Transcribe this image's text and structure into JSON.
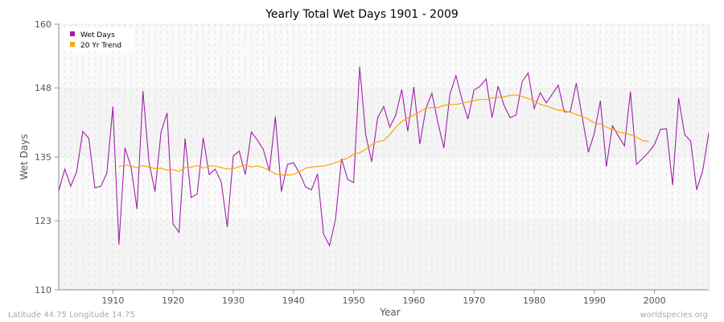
{
  "chart_data": {
    "type": "line",
    "title": "Yearly Total Wet Days 1901 - 2009",
    "xlabel": "Year",
    "ylabel": "Wet Days",
    "xlim": [
      1901,
      2009
    ],
    "ylim": [
      110,
      160
    ],
    "yticks": [
      110,
      123,
      135,
      148,
      160
    ],
    "xticks": [
      1910,
      1920,
      1930,
      1940,
      1950,
      1960,
      1970,
      1980,
      1990,
      2000
    ],
    "grid": true,
    "legend_position": "top-left",
    "series": [
      {
        "name": "Wet Days",
        "color": "#a020a8",
        "x_start": 1901,
        "values": [
          128.6,
          132.7,
          129.5,
          132.3,
          139.8,
          138.5,
          129.2,
          129.5,
          132.0,
          144.5,
          118.5,
          136.7,
          133.2,
          125.2,
          147.4,
          134.0,
          128.5,
          139.7,
          143.3,
          122.4,
          120.8,
          138.5,
          127.4,
          128.0,
          138.6,
          131.7,
          132.7,
          130.3,
          121.8,
          135.2,
          136.1,
          131.7,
          139.7,
          138.2,
          136.4,
          132.3,
          142.6,
          128.5,
          133.6,
          133.9,
          132.0,
          129.4,
          128.8,
          131.8,
          120.5,
          118.3,
          123.3,
          134.7,
          130.8,
          130.2,
          152.0,
          139.2,
          134.1,
          142.4,
          144.5,
          140.6,
          142.9,
          147.7,
          139.8,
          148.2,
          137.4,
          144.1,
          147.0,
          141.5,
          136.7,
          146.8,
          150.3,
          145.8,
          142.1,
          147.6,
          148.3,
          149.7,
          142.4,
          148.3,
          144.7,
          142.4,
          142.9,
          149.2,
          150.8,
          144.1,
          147.1,
          145.2,
          146.8,
          148.5,
          143.5,
          143.5,
          148.9,
          142.4,
          135.9,
          139.5,
          145.6,
          133.2,
          140.9,
          138.9,
          137.1,
          147.3,
          133.6,
          134.7,
          135.9,
          137.4,
          140.2,
          140.3,
          129.7,
          146.1,
          139.2,
          138.0,
          128.8,
          132.4,
          139.5
        ]
      },
      {
        "name": "20 Yr Trend",
        "color": "#ffa500",
        "x_start": 1911,
        "values": [
          133.2,
          133.5,
          133.3,
          133.0,
          133.4,
          133.1,
          132.8,
          132.9,
          132.5,
          132.6,
          132.3,
          133.0,
          133.1,
          133.4,
          132.9,
          133.3,
          133.3,
          133.0,
          132.7,
          132.8,
          133.2,
          133.5,
          133.1,
          133.3,
          133.0,
          132.5,
          131.8,
          131.6,
          131.6,
          131.7,
          132.2,
          132.9,
          133.1,
          133.2,
          133.3,
          133.6,
          133.9,
          134.4,
          134.8,
          135.5,
          135.8,
          136.4,
          137.3,
          137.9,
          138.1,
          139.2,
          140.6,
          141.7,
          142.3,
          142.9,
          143.5,
          144.2,
          144.3,
          144.3,
          144.7,
          144.9,
          144.9,
          145.1,
          145.4,
          145.6,
          145.8,
          145.8,
          146.1,
          146.2,
          146.3,
          146.6,
          146.7,
          146.4,
          146.0,
          145.6,
          144.9,
          144.6,
          144.2,
          143.8,
          143.7,
          143.4,
          143.0,
          142.6,
          142.1,
          141.4,
          141.2,
          140.6,
          140.2,
          139.7,
          139.5,
          139.2,
          138.7,
          138.1,
          137.9
        ]
      }
    ]
  },
  "footer": {
    "location": "Latitude 44.75 Longitude 14.75",
    "source": "worldspecies.org"
  }
}
